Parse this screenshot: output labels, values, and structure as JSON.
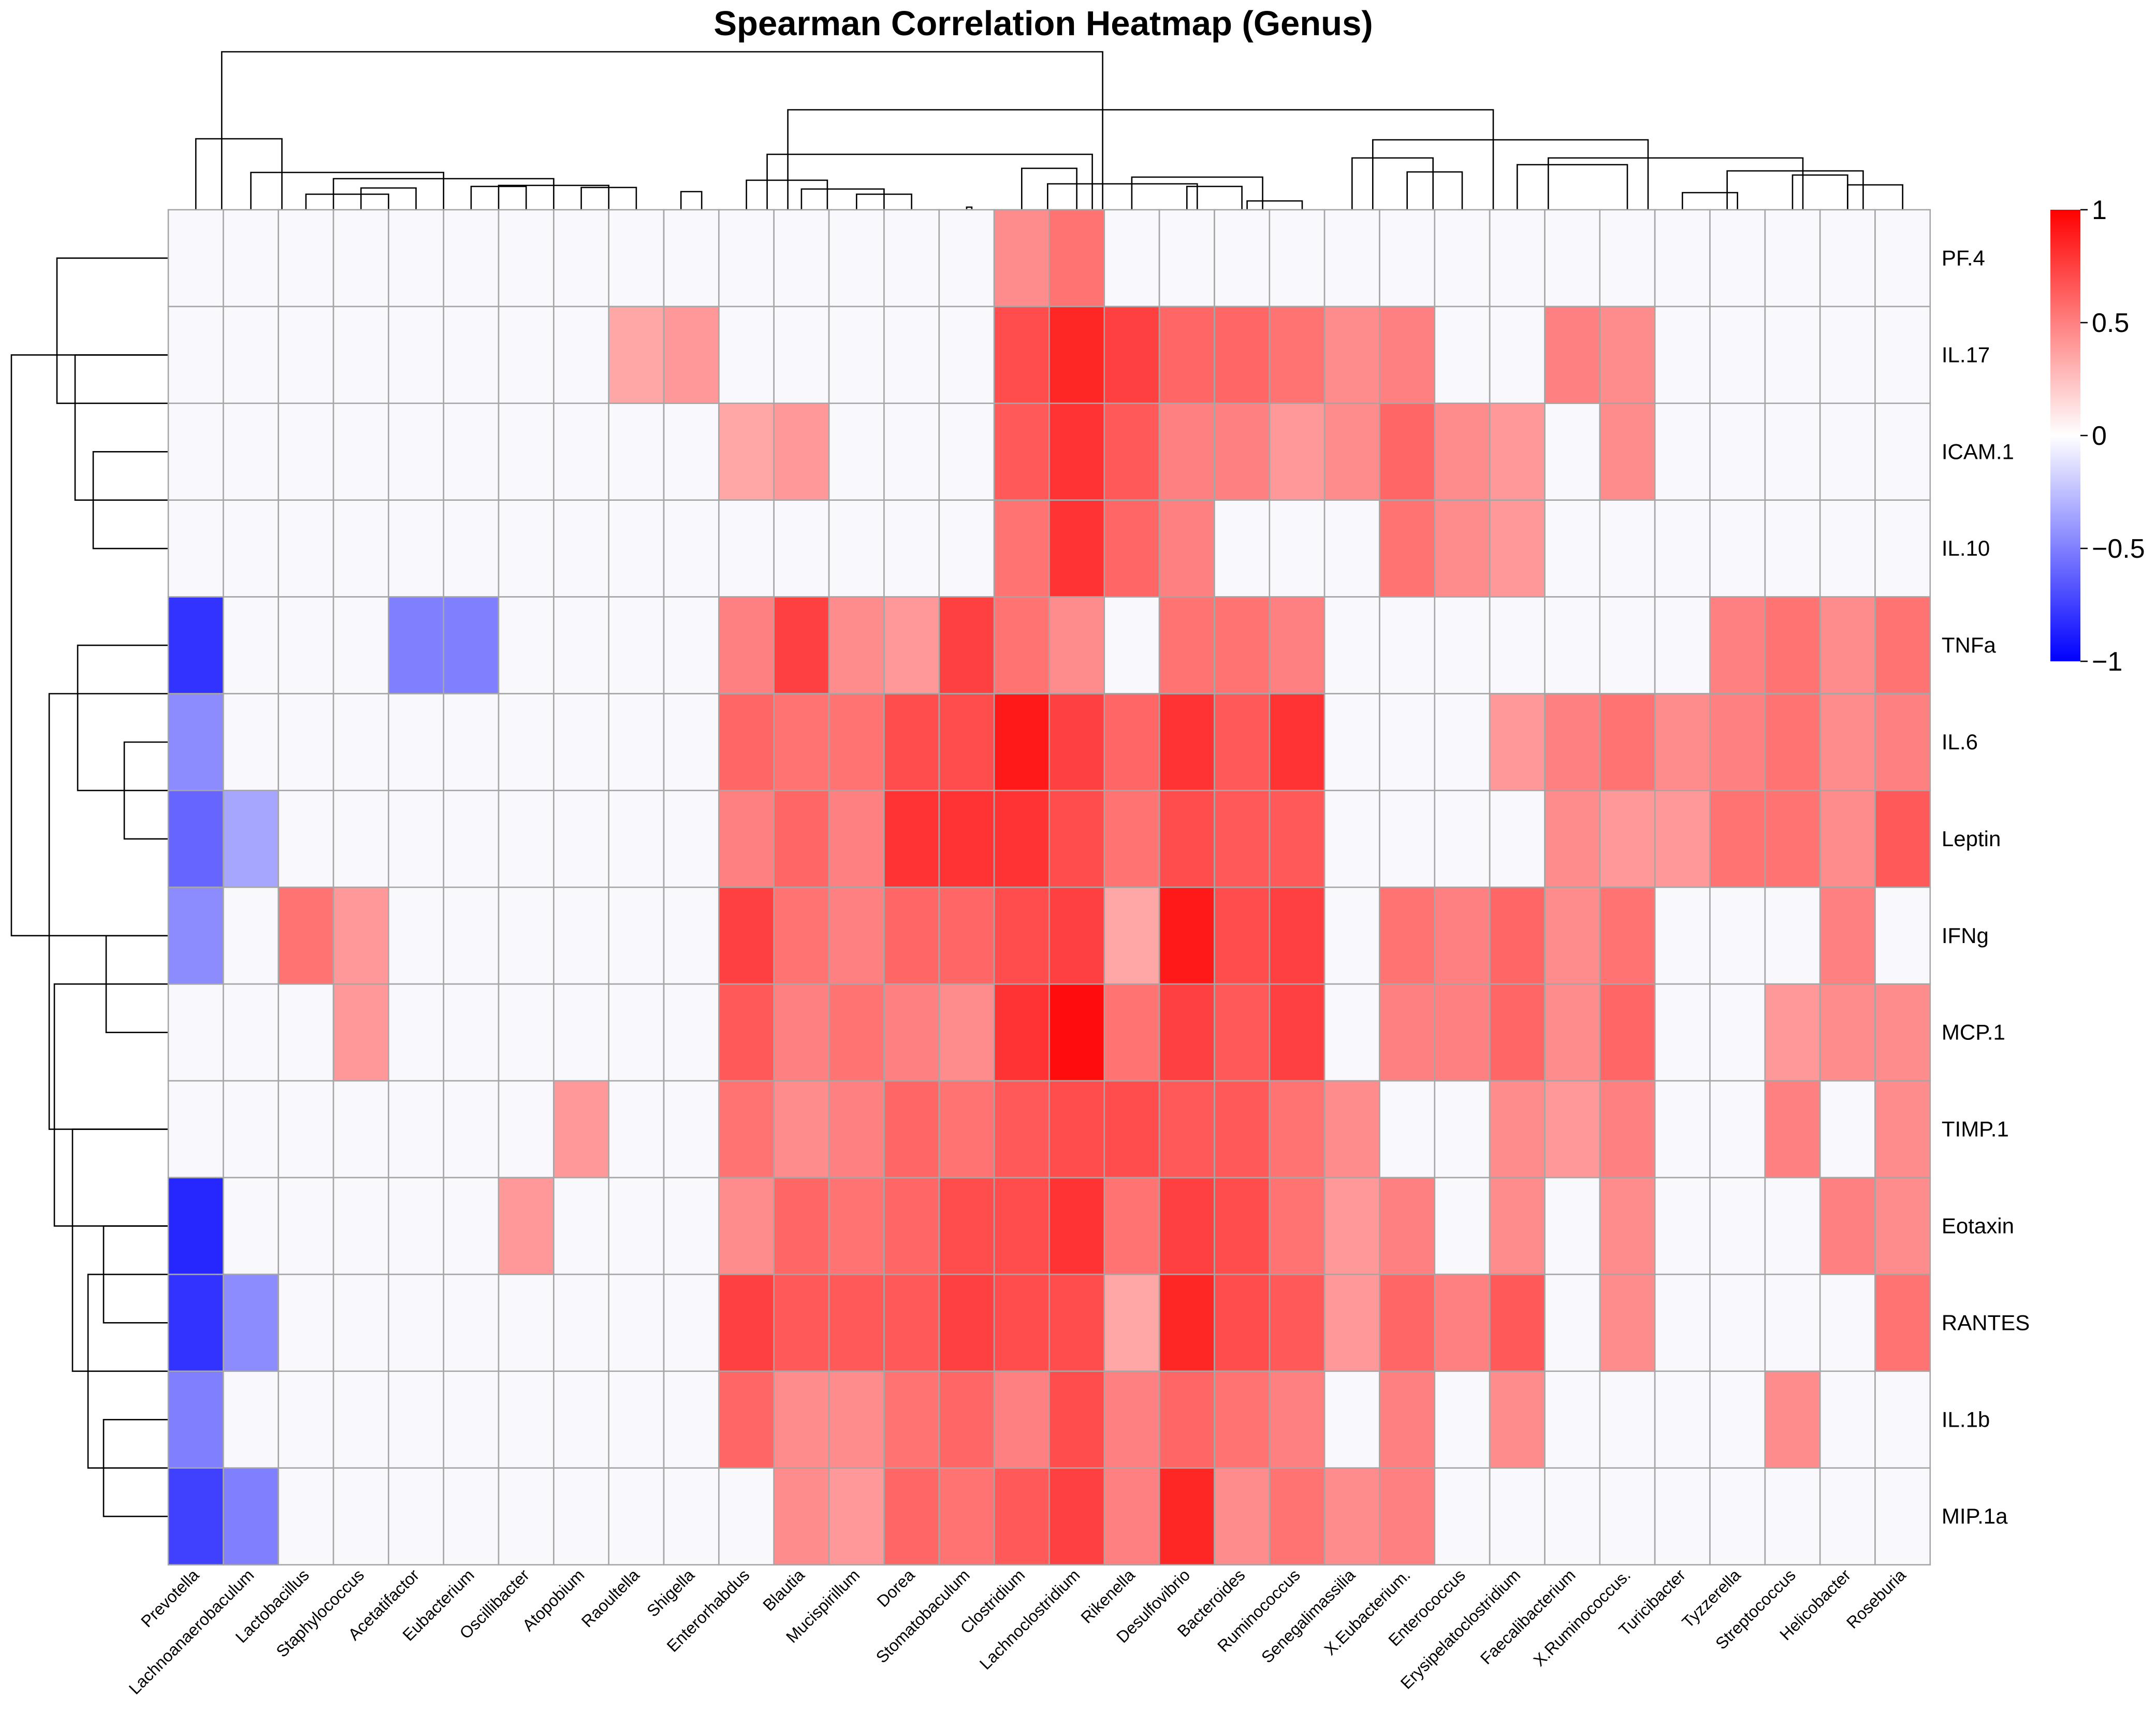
{
  "chart_data": {
    "type": "heatmap",
    "title": "Spearman Correlation Heatmap (Genus)",
    "xlabel": "",
    "ylabel": "",
    "columns": [
      "Prevotella",
      "Lachnoanaerobaculum",
      "Lactobacillus",
      "Staphylococcus",
      "Acetatifactor",
      "Eubacterium",
      "Oscillibacter",
      "Atopobium",
      "Raoultella",
      "Shigella",
      "Enterorhabdus",
      "Blautia",
      "Mucispirillum",
      "Dorea",
      "Stomatobaculum",
      "Clostridium",
      "Lachnoclostridium",
      "Rikenella",
      "Desulfovibrio",
      "Bacteroides",
      "Ruminococcus",
      "Senegalimassilia",
      "X.Eubacterium.",
      "Enterococcus",
      "Erysipelatoclostridium",
      "Faecalibacterium",
      "X.Ruminococcus.",
      "Turicibacter",
      "Tyzzerella",
      "Streptococcus",
      "Helicobacter",
      "Roseburia"
    ],
    "rows": [
      "PF.4",
      "IL.17",
      "ICAM.1",
      "IL.10",
      "TNFa",
      "IL.6",
      "Leptin",
      "IFNg",
      "MCP.1",
      "TIMP.1",
      "Eotaxin",
      "RANTES",
      "IL.1b",
      "MIP.1a"
    ],
    "values": [
      [
        0,
        0,
        0,
        0,
        0,
        0,
        0,
        0,
        0,
        0,
        0,
        0,
        0,
        0,
        0,
        0.45,
        0.55,
        0,
        0,
        0,
        0,
        0,
        0,
        0,
        0,
        0,
        0,
        0,
        0,
        0,
        0,
        0
      ],
      [
        0,
        0,
        0,
        0,
        0,
        0,
        0,
        0,
        0.35,
        0.4,
        0,
        0,
        0,
        0,
        0,
        0.7,
        0.85,
        0.75,
        0.6,
        0.6,
        0.55,
        0.45,
        0.5,
        0,
        0,
        0.5,
        0.45,
        0,
        0,
        0,
        0,
        0
      ],
      [
        0,
        0,
        0,
        0,
        0,
        0,
        0,
        0,
        0,
        0,
        0.35,
        0.4,
        0,
        0,
        0,
        0.65,
        0.8,
        0.65,
        0.5,
        0.5,
        0.4,
        0.45,
        0.6,
        0.45,
        0.4,
        0,
        0.45,
        0,
        0,
        0,
        0,
        0
      ],
      [
        0,
        0,
        0,
        0,
        0,
        0,
        0,
        0,
        0,
        0,
        0,
        0,
        0,
        0,
        0,
        0.55,
        0.8,
        0.6,
        0.5,
        0,
        0,
        0,
        0.55,
        0.45,
        0.4,
        0,
        0,
        0,
        0,
        0,
        0,
        0
      ],
      [
        -0.8,
        0,
        0,
        0,
        -0.5,
        -0.5,
        0,
        0,
        0,
        0,
        0.5,
        0.75,
        0.45,
        0.4,
        0.75,
        0.55,
        0.45,
        0,
        0.55,
        0.55,
        0.5,
        0,
        0,
        0,
        0,
        0,
        0,
        0,
        0.5,
        0.55,
        0.45,
        0.55
      ],
      [
        -0.45,
        0,
        0,
        0,
        0,
        0,
        0,
        0,
        0,
        0,
        0.6,
        0.55,
        0.55,
        0.7,
        0.7,
        0.9,
        0.75,
        0.6,
        0.8,
        0.65,
        0.8,
        0,
        0,
        0,
        0.4,
        0.5,
        0.55,
        0.45,
        0.5,
        0.55,
        0.45,
        0.5
      ],
      [
        -0.6,
        -0.35,
        0,
        0,
        0,
        0,
        0,
        0,
        0,
        0,
        0.5,
        0.6,
        0.5,
        0.8,
        0.8,
        0.8,
        0.7,
        0.55,
        0.7,
        0.65,
        0.65,
        0,
        0,
        0,
        0,
        0.45,
        0.4,
        0.4,
        0.55,
        0.55,
        0.45,
        0.65
      ],
      [
        -0.45,
        0,
        0.55,
        0.4,
        0,
        0,
        0,
        0,
        0,
        0,
        0.75,
        0.55,
        0.5,
        0.6,
        0.6,
        0.7,
        0.75,
        0.35,
        0.9,
        0.7,
        0.75,
        0,
        0.55,
        0.5,
        0.6,
        0.45,
        0.55,
        0,
        0,
        0,
        0.5,
        0
      ],
      [
        0,
        0,
        0,
        0.4,
        0,
        0,
        0,
        0,
        0,
        0,
        0.65,
        0.5,
        0.55,
        0.5,
        0.45,
        0.8,
        0.95,
        0.55,
        0.75,
        0.65,
        0.75,
        0,
        0.5,
        0.5,
        0.6,
        0.45,
        0.6,
        0,
        0,
        0.4,
        0.45,
        0.45
      ],
      [
        0,
        0,
        0,
        0,
        0,
        0,
        0,
        0.4,
        0,
        0,
        0.55,
        0.45,
        0.5,
        0.6,
        0.55,
        0.65,
        0.7,
        0.7,
        0.65,
        0.65,
        0.55,
        0.45,
        0,
        0,
        0.45,
        0.4,
        0.5,
        0,
        0,
        0.5,
        0,
        0.45
      ],
      [
        -0.85,
        0,
        0,
        0,
        0,
        0,
        0.4,
        0,
        0,
        0,
        0.45,
        0.6,
        0.55,
        0.6,
        0.7,
        0.7,
        0.8,
        0.55,
        0.75,
        0.7,
        0.55,
        0.4,
        0.5,
        0,
        0.45,
        0,
        0.45,
        0,
        0,
        0,
        0.5,
        0.45
      ],
      [
        -0.8,
        -0.45,
        0,
        0,
        0,
        0,
        0,
        0,
        0,
        0,
        0.75,
        0.65,
        0.65,
        0.65,
        0.75,
        0.7,
        0.7,
        0.35,
        0.85,
        0.7,
        0.65,
        0.4,
        0.6,
        0.5,
        0.65,
        0,
        0.45,
        0,
        0,
        0,
        0,
        0.55
      ],
      [
        -0.5,
        0,
        0,
        0,
        0,
        0,
        0,
        0,
        0,
        0,
        0.6,
        0.45,
        0.45,
        0.55,
        0.6,
        0.5,
        0.7,
        0.5,
        0.6,
        0.55,
        0.5,
        0,
        0.5,
        0,
        0.45,
        0,
        0,
        0,
        0,
        0.45,
        0,
        0
      ],
      [
        -0.75,
        -0.5,
        0,
        0,
        0,
        0,
        0,
        0,
        0,
        0,
        0,
        0.45,
        0.4,
        0.6,
        0.55,
        0.65,
        0.75,
        0.5,
        0.85,
        0.45,
        0.55,
        0.45,
        0.5,
        0,
        0,
        0,
        0,
        0,
        0,
        0,
        0,
        0
      ]
    ],
    "color_scale": {
      "low": "#0000ff",
      "mid": "#ffffff",
      "high": "#ff0000",
      "min": -1,
      "max": 1
    },
    "legend": {
      "position": "right",
      "ticks": [
        "1",
        "0.5",
        "0",
        "−0.5",
        "−1"
      ]
    },
    "dendrograms": {
      "rows": "left",
      "columns": "top"
    }
  }
}
